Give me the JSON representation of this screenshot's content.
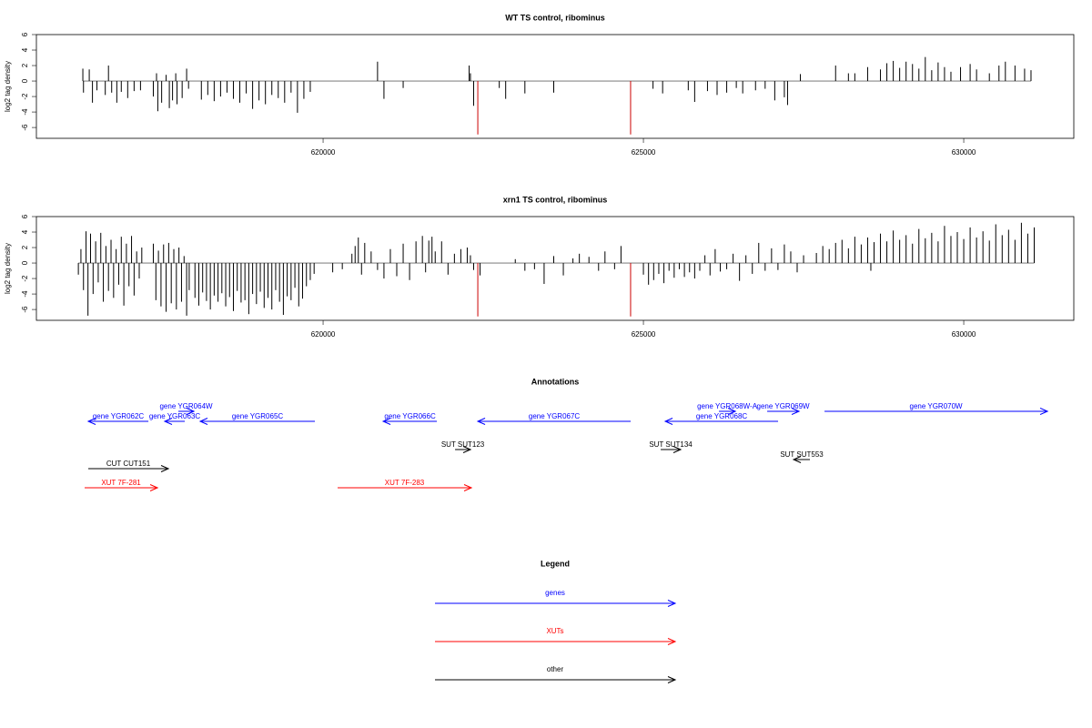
{
  "chart_data": [
    {
      "type": "bar",
      "title": "WT TS control, ribominus",
      "ylabel": "log2 tag density",
      "xlim": [
        615525,
        631718
      ],
      "ylim": [
        -7.4,
        6
      ],
      "xticks": [
        620000,
        625000,
        630000
      ],
      "yticks": [
        -6,
        -4,
        -2,
        0,
        2,
        4,
        6
      ],
      "series": [
        {
          "color": "#000000",
          "x": [
            616250,
            616260,
            616350,
            616400,
            616470,
            616600,
            616650,
            616700,
            616780,
            616850,
            616950,
            617050,
            617150,
            617350,
            617400,
            617420,
            617480,
            617550,
            617600,
            617650,
            617700,
            617720,
            617800,
            617870,
            617900,
            618100,
            618200,
            618300,
            618400,
            618500,
            618600,
            618700,
            618800,
            618900,
            619000,
            619100,
            619200,
            619300,
            619400,
            619500,
            619600,
            619700,
            619800,
            620850,
            620950,
            621250,
            622280,
            622300,
            622350,
            622750,
            622850,
            623150,
            623600,
            625150,
            625300,
            625700,
            625800,
            626000,
            626150,
            626300,
            626450,
            626550,
            626750,
            626900,
            627050,
            627200,
            627250,
            627450,
            628000,
            628200,
            628300,
            628500,
            628700,
            628800,
            628900,
            629000,
            629100,
            629200,
            629300,
            629400,
            629500,
            629600,
            629700,
            629800,
            629950,
            630100,
            630200,
            630400,
            630550,
            630650,
            630800,
            630950,
            631050
          ],
          "values": [
            1.6,
            -1.5,
            1.5,
            -2.8,
            -1.2,
            -1.8,
            2.0,
            -1.5,
            -2.8,
            -1.4,
            -2.2,
            -1.3,
            -1.2,
            -2.0,
            1.0,
            -3.9,
            -2.8,
            0.8,
            -3.5,
            -2.5,
            1.0,
            -3.0,
            -2.2,
            1.6,
            -1.0,
            -2.4,
            -1.8,
            -2.6,
            -2.0,
            -1.5,
            -2.3,
            -2.8,
            -1.6,
            -3.6,
            -2.5,
            -3.0,
            -1.8,
            -2.2,
            -2.8,
            -1.5,
            -4.1,
            -2.3,
            -1.4,
            2.5,
            -2.3,
            -0.9,
            2.0,
            1.0,
            -3.2,
            -0.9,
            -2.3,
            -1.6,
            -1.5,
            -1.0,
            -1.6,
            -1.2,
            -2.7,
            -1.3,
            -1.8,
            -1.5,
            -0.9,
            -1.6,
            -1.2,
            -1.0,
            -2.5,
            -2.1,
            -3.1,
            0.9,
            2.0,
            1.0,
            1.0,
            1.8,
            1.5,
            2.3,
            2.6,
            1.7,
            2.5,
            2.2,
            1.6,
            3.1,
            1.4,
            2.4,
            1.8,
            1.2,
            1.8,
            2.2,
            1.5,
            1.0,
            2.0,
            2.5,
            2.0,
            1.6,
            1.4
          ]
        },
        {
          "color": "#cc0000",
          "x": [
            622415,
            624800
          ],
          "values": [
            -6.9,
            -6.9
          ]
        }
      ]
    },
    {
      "type": "bar",
      "title": "xrn1 TS control, ribominus",
      "ylabel": "log2 tag density",
      "xlim": [
        615525,
        631718
      ],
      "ylim": [
        -7.4,
        6
      ],
      "xticks": [
        620000,
        625000,
        630000
      ],
      "yticks": [
        -6,
        -4,
        -2,
        0,
        2,
        4,
        6
      ],
      "series": [
        {
          "color": "#000000",
          "x": [
            616180,
            616220,
            616260,
            616300,
            616330,
            616370,
            616410,
            616450,
            616490,
            616530,
            616570,
            616610,
            616650,
            616690,
            616730,
            616770,
            616810,
            616850,
            616890,
            616930,
            616970,
            617010,
            617050,
            617090,
            617130,
            617170,
            617350,
            617390,
            617430,
            617470,
            617510,
            617550,
            617590,
            617630,
            617670,
            617710,
            617750,
            617790,
            617830,
            617870,
            617910,
            618000,
            618060,
            618120,
            618180,
            618240,
            618300,
            618360,
            618420,
            618480,
            618540,
            618600,
            618660,
            618720,
            618780,
            618840,
            618900,
            618960,
            619020,
            619080,
            619140,
            619200,
            619260,
            619320,
            619380,
            619440,
            619500,
            619560,
            619620,
            619680,
            619740,
            619800,
            619860,
            620150,
            620300,
            620450,
            620500,
            620550,
            620600,
            620650,
            620750,
            620850,
            620950,
            621050,
            621150,
            621250,
            621350,
            621450,
            621550,
            621600,
            621650,
            621700,
            621750,
            621850,
            621950,
            622050,
            622150,
            622250,
            622300,
            622350,
            622450,
            623000,
            623150,
            623300,
            623450,
            623600,
            623750,
            623900,
            624000,
            624150,
            624300,
            624400,
            624550,
            624650,
            625000,
            625080,
            625160,
            625240,
            625320,
            625400,
            625480,
            625560,
            625640,
            625720,
            625800,
            625880,
            625960,
            626040,
            626120,
            626200,
            626300,
            626400,
            626500,
            626600,
            626700,
            626800,
            626900,
            627000,
            627100,
            627200,
            627300,
            627400,
            627500,
            627700,
            627800,
            627900,
            628000,
            628100,
            628200,
            628300,
            628400,
            628500,
            628550,
            628600,
            628700,
            628800,
            628900,
            629000,
            629100,
            629200,
            629300,
            629400,
            629500,
            629600,
            629700,
            629800,
            629900,
            630000,
            630100,
            630200,
            630300,
            630400,
            630500,
            630600,
            630700,
            630800,
            630900,
            631000,
            631100
          ],
          "values": [
            -1.5,
            1.8,
            -3.5,
            4.1,
            -6.8,
            3.8,
            -4.0,
            2.8,
            -2.5,
            3.9,
            -5.0,
            2.2,
            -3.6,
            3.0,
            -4.5,
            1.8,
            -2.8,
            3.4,
            -5.5,
            2.5,
            -3.0,
            3.5,
            -4.2,
            1.5,
            -2.0,
            2.0,
            2.5,
            -4.8,
            1.6,
            -5.6,
            2.4,
            -6.3,
            2.6,
            -5.2,
            1.8,
            -6.0,
            2.0,
            -5.0,
            0.9,
            -6.8,
            -3.5,
            -4.5,
            -5.5,
            -3.8,
            -4.9,
            -6.0,
            -4.2,
            -5.0,
            -3.9,
            -5.6,
            -4.4,
            -6.2,
            -3.6,
            -5.1,
            -4.8,
            -6.6,
            -4.0,
            -5.3,
            -3.7,
            -5.8,
            -4.5,
            -6.0,
            -3.5,
            -5.0,
            -6.7,
            -4.3,
            -4.8,
            -3.2,
            -5.6,
            -4.6,
            -3.0,
            -2.2,
            -1.4,
            -1.2,
            -0.8,
            1.2,
            2.2,
            3.3,
            -1.5,
            2.6,
            1.5,
            -0.9,
            -2.0,
            1.8,
            -1.7,
            2.5,
            -2.2,
            2.8,
            3.5,
            -1.2,
            2.9,
            3.4,
            1.5,
            2.8,
            -1.5,
            1.2,
            1.8,
            2.0,
            1.0,
            -0.9,
            -1.6,
            0.5,
            -1.0,
            -0.8,
            -2.7,
            0.9,
            -1.6,
            0.6,
            1.2,
            0.8,
            -1.0,
            1.5,
            -0.8,
            2.2,
            -1.5,
            -2.8,
            -2.2,
            -1.4,
            -2.6,
            -1.0,
            -1.9,
            -0.8,
            -1.8,
            -1.2,
            -2.0,
            -1.0,
            1.0,
            -1.6,
            1.8,
            -1.1,
            -0.8,
            1.2,
            -2.3,
            1.0,
            -1.4,
            2.6,
            -1.0,
            1.9,
            -0.9,
            2.4,
            1.5,
            -1.2,
            1.0,
            1.3,
            2.2,
            1.8,
            2.6,
            3.0,
            1.9,
            3.4,
            2.4,
            3.3,
            -1.0,
            2.7,
            3.8,
            2.8,
            4.2,
            3.0,
            3.6,
            2.5,
            4.4,
            3.2,
            3.9,
            2.8,
            4.8,
            3.5,
            4.0,
            3.1,
            4.6,
            3.3,
            4.1,
            2.9,
            5.0,
            3.6,
            4.3,
            3.0,
            5.2,
            3.8,
            4.6
          ]
        },
        {
          "color": "#cc0000",
          "x": [
            622415,
            624800
          ],
          "values": [
            -6.9,
            -6.9
          ]
        }
      ]
    },
    {
      "type": "annotation",
      "title": "Annotations",
      "xlim": [
        615525,
        631718
      ],
      "features": [
        {
          "label": "gene YGR062C",
          "from": 617273,
          "to": 616335,
          "color": "#0000ff"
        },
        {
          "label": "gene YGR063C",
          "from": 617841,
          "to": 617528,
          "color": "#0000ff"
        },
        {
          "label": "gene YGR064W",
          "from": 617741,
          "to": 617983,
          "color": "#0000ff"
        },
        {
          "label": "gene YGR065C",
          "from": 619872,
          "to": 618082,
          "color": "#0000ff"
        },
        {
          "label": "gene YGR066C",
          "from": 621776,
          "to": 620938,
          "color": "#0000ff"
        },
        {
          "label": "gene YGR067C",
          "from": 624801,
          "to": 622415,
          "color": "#0000ff"
        },
        {
          "label": "gene YGR068W-A",
          "from": 626179,
          "to": 626435,
          "color": "#0000ff"
        },
        {
          "label": "gene YGR068C",
          "from": 627102,
          "to": 625341,
          "color": "#0000ff"
        },
        {
          "label": "gene YGR069W",
          "from": 626932,
          "to": 627429,
          "color": "#0000ff"
        },
        {
          "label": "gene YGR070W",
          "from": 627827,
          "to": 631307,
          "color": "#0000ff"
        },
        {
          "label": "SUT SUT123",
          "from": 622060,
          "to": 622301,
          "color": "#000000"
        },
        {
          "label": "SUT SUT134",
          "from": 625270,
          "to": 625582,
          "color": "#000000"
        },
        {
          "label": "SUT SUT553",
          "from": 627599,
          "to": 627344,
          "color": "#000000"
        },
        {
          "label": "CUT CUT151",
          "from": 616335,
          "to": 617585,
          "color": "#000000"
        },
        {
          "label": "XUT 7F-281",
          "from": 616278,
          "to": 617415,
          "color": "#ff0000"
        },
        {
          "label": "XUT 7F-283",
          "from": 620227,
          "to": 622315,
          "color": "#ff0000"
        }
      ]
    }
  ],
  "legend": {
    "title": "Legend",
    "items": [
      {
        "label": "genes",
        "color": "#0000ff"
      },
      {
        "label": "XUTs",
        "color": "#ff0000"
      },
      {
        "label": "other",
        "color": "#000000"
      }
    ]
  }
}
